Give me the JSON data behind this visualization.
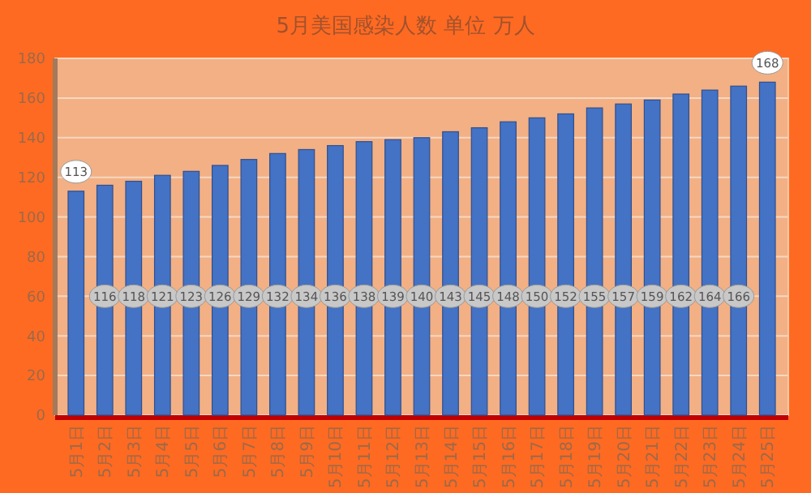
{
  "chart_data": {
    "type": "bar",
    "title": "5月美国感染人数 单位 万人",
    "categories": [
      "5月1日",
      "5月2日",
      "5月3日",
      "5月4日",
      "5月5日",
      "5月6日",
      "5月7日",
      "5月8日",
      "5月9日",
      "5月10日",
      "5月11日",
      "5月12日",
      "5月13日",
      "5月14日",
      "5月15日",
      "5月16日",
      "5月17日",
      "5月18日",
      "5月19日",
      "5月20日",
      "5月21日",
      "5月22日",
      "5月23日",
      "5月24日",
      "5月25日"
    ],
    "values": [
      113,
      116,
      118,
      121,
      123,
      126,
      129,
      132,
      134,
      136,
      138,
      139,
      140,
      143,
      145,
      148,
      150,
      152,
      155,
      157,
      159,
      162,
      164,
      166,
      168
    ],
    "color": "#4472c4",
    "ylim": [
      0,
      180
    ],
    "yticks": [
      0,
      20,
      40,
      60,
      80,
      100,
      120,
      140,
      160,
      180
    ],
    "grid": "y",
    "data_labels": true
  }
}
